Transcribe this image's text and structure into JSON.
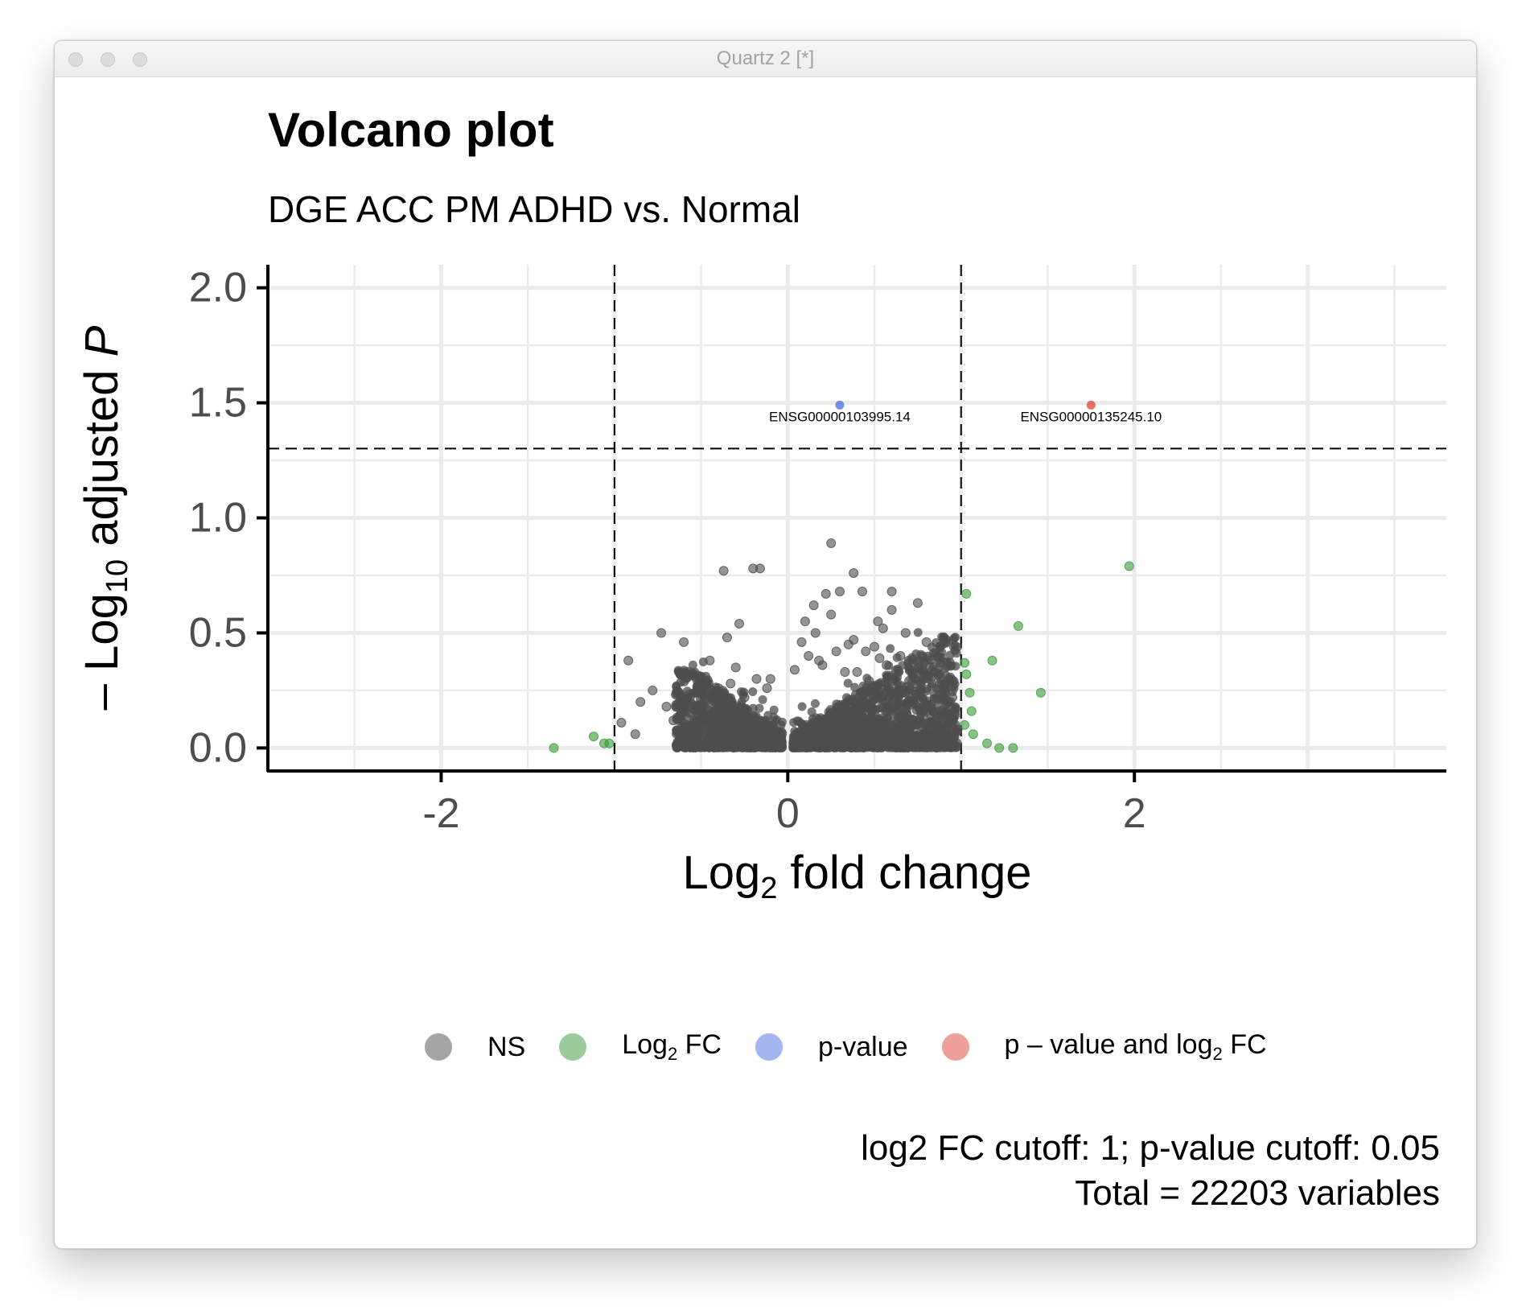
{
  "window": {
    "title": "Quartz 2 [*]"
  },
  "chart_data": {
    "type": "scatter",
    "title": "Volcano plot",
    "subtitle": "DGE ACC PM ADHD vs. Normal",
    "xlabel": {
      "base": "Log",
      "sub": "2",
      "rest": " fold change"
    },
    "ylabel": {
      "prefix": "– Log",
      "sub": "10",
      "mid": " adjusted ",
      "italic": "P"
    },
    "xlim": [
      -3.0,
      3.8
    ],
    "ylim": [
      -0.1,
      2.1
    ],
    "xticks": [
      -2,
      0,
      2
    ],
    "xtick_labels": [
      "-2",
      "0",
      "2"
    ],
    "yticks": [
      0.0,
      0.5,
      1.0,
      1.5,
      2.0
    ],
    "ytick_labels": [
      "0.0",
      "0.5",
      "1.0",
      "1.5",
      "2.0"
    ],
    "grid": true,
    "cutoff_lines": {
      "vertical": [
        -1,
        1
      ],
      "horizontal": 1.30103
    },
    "legend_position": "bottom",
    "legend": [
      {
        "key": "NS",
        "label": "NS",
        "color": "#4d4d4d"
      },
      {
        "key": "FC",
        "label": {
          "base": "Log",
          "sub": "2",
          "rest": " FC"
        },
        "color": "#3b9a3b"
      },
      {
        "key": "P",
        "label": "p-value",
        "color": "#4a6fe0"
      },
      {
        "key": "FC_P",
        "label": {
          "base": "p – value and log",
          "sub": "2",
          "rest": " FC"
        },
        "color": "#e0403a"
      }
    ],
    "caption": [
      "log2 FC cutoff: 1; p-value cutoff: 0.05",
      "Total = 22203 variables"
    ],
    "labeled_points": [
      {
        "label": "ENSG00000103995.14",
        "x": 0.3,
        "y": 1.49,
        "group": "P"
      },
      {
        "label": "ENSG00000135245.10",
        "x": 1.75,
        "y": 1.49,
        "group": "FC_P"
      }
    ],
    "series": [
      {
        "name": "Log2 FC",
        "group": "FC",
        "x": [
          -1.35,
          -1.12,
          -1.06,
          -1.03,
          1.97,
          1.03,
          1.33,
          1.18,
          1.46,
          1.02,
          1.03,
          1.05,
          1.06,
          1.02,
          1.07,
          1.15,
          1.22,
          1.3
        ],
        "y": [
          0.0,
          0.05,
          0.02,
          0.02,
          0.79,
          0.67,
          0.53,
          0.38,
          0.24,
          0.37,
          0.32,
          0.24,
          0.16,
          0.1,
          0.06,
          0.02,
          0.0,
          0.0
        ]
      },
      {
        "name": "NS",
        "group": "NS",
        "x": [
          0.25,
          -0.37,
          -0.2,
          -0.16,
          0.38,
          0.43,
          0.22,
          0.3,
          0.6,
          0.75,
          -0.73,
          -0.28,
          -0.35,
          -0.6,
          -0.92,
          -0.96,
          -0.5,
          0.52,
          0.68,
          0.9,
          0.8,
          0.55,
          0.35,
          0.16,
          0.88,
          0.95,
          0.72,
          -0.85,
          -0.78,
          -0.4,
          0.1,
          0.65,
          0.82,
          0.93,
          0.7,
          0.45,
          0.6,
          0.15,
          0.25,
          0.38,
          0.5,
          0.57,
          -0.55,
          -0.45,
          -0.3,
          -0.62,
          -0.7,
          -0.1,
          0.08,
          0.12,
          0.2,
          0.28,
          0.33,
          0.47,
          0.53,
          0.63,
          0.78,
          0.85,
          0.98,
          -0.88,
          -0.66,
          -0.5,
          -0.42,
          -0.33,
          -0.25,
          -0.18,
          -0.12,
          0.04,
          0.18,
          0.4
        ],
        "y": [
          0.89,
          0.77,
          0.78,
          0.78,
          0.76,
          0.68,
          0.67,
          0.68,
          0.68,
          0.63,
          0.5,
          0.54,
          0.48,
          0.46,
          0.38,
          0.11,
          0.31,
          0.55,
          0.5,
          0.48,
          0.46,
          0.52,
          0.45,
          0.5,
          0.28,
          0.22,
          0.32,
          0.2,
          0.25,
          0.26,
          0.55,
          0.4,
          0.35,
          0.3,
          0.2,
          0.42,
          0.6,
          0.62,
          0.58,
          0.47,
          0.44,
          0.36,
          0.32,
          0.38,
          0.35,
          0.22,
          0.18,
          0.3,
          0.46,
          0.4,
          0.36,
          0.42,
          0.33,
          0.29,
          0.39,
          0.27,
          0.14,
          0.12,
          0.08,
          0.06,
          0.12,
          0.19,
          0.24,
          0.28,
          0.22,
          0.3,
          0.26,
          0.34,
          0.38,
          0.33
        ]
      }
    ]
  }
}
